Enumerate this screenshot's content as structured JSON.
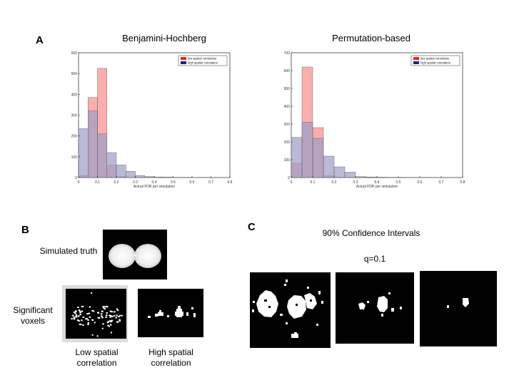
{
  "panels": {
    "a": {
      "letter": "A"
    },
    "b": {
      "letter": "B",
      "simulated_truth_label": "Simulated truth",
      "significant_voxels_label": "Significant voxels",
      "low_label": "Low spatial correlation",
      "high_label": "High spatial correlation"
    },
    "c": {
      "letter": "C",
      "title": "90% Confidence Intervals",
      "q_label": "q=0.1"
    }
  },
  "chart_data": [
    {
      "type": "bar",
      "title": "Benjamini-Hochberg",
      "xlabel": "Actual FDR per simulation",
      "ylabel": "",
      "xlim": [
        0,
        0.8
      ],
      "ylim": [
        0,
        600
      ],
      "xticks": [
        "0",
        "0.1",
        "0.2",
        "0.3",
        "0.4",
        "0.5",
        "0.6",
        "0.7",
        "0.8"
      ],
      "yticks": [
        "0",
        "100",
        "200",
        "300",
        "400",
        "500",
        "600"
      ],
      "bin_edges": [
        0,
        0.05,
        0.1,
        0.15,
        0.2,
        0.25,
        0.3,
        0.35,
        0.4,
        0.45,
        0.5,
        0.55,
        0.6,
        0.65,
        0.7,
        0.75
      ],
      "legend_position": "top-right",
      "series": [
        {
          "name": "low spatial correlation",
          "color": "#fa8c8c",
          "values": [
            10,
            385,
            525,
            60,
            5,
            1,
            0,
            0,
            0,
            0,
            0,
            0,
            0,
            0,
            0
          ]
        },
        {
          "name": "high spatial correlation",
          "color": "#9d9cc8",
          "values": [
            235,
            320,
            210,
            120,
            60,
            30,
            10,
            5,
            3,
            2,
            1,
            1,
            0,
            1,
            0
          ]
        }
      ]
    },
    {
      "type": "bar",
      "title": "Permutation-based",
      "xlabel": "Actual FDR per simulation",
      "ylabel": "",
      "xlim": [
        0,
        0.8
      ],
      "ylim": [
        0,
        700
      ],
      "xticks": [
        "0",
        "0.1",
        "0.2",
        "0.3",
        "0.4",
        "0.5",
        "0.6",
        "0.7",
        "0.8"
      ],
      "yticks": [
        "0",
        "100",
        "200",
        "300",
        "400",
        "500",
        "600",
        "700"
      ],
      "bin_edges": [
        0,
        0.05,
        0.1,
        0.15,
        0.2,
        0.25,
        0.3,
        0.35,
        0.4,
        0.45,
        0.5,
        0.55,
        0.6,
        0.65,
        0.7,
        0.75
      ],
      "legend_position": "top-right",
      "series": [
        {
          "name": "low spatial correlation",
          "color": "#fa8c8c",
          "values": [
            80,
            620,
            280,
            10,
            1,
            0,
            0,
            0,
            0,
            0,
            0,
            0,
            0,
            0,
            0
          ]
        },
        {
          "name": "high spatial correlation",
          "color": "#9d9cc8",
          "values": [
            225,
            310,
            220,
            120,
            60,
            30,
            5,
            3,
            2,
            1,
            1,
            0,
            1,
            0,
            0
          ]
        }
      ]
    }
  ]
}
